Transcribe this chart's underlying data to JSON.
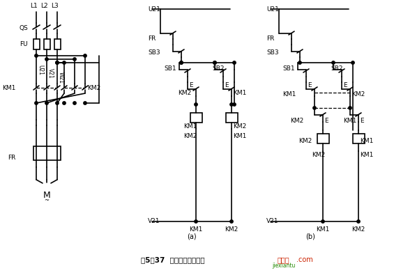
{
  "title": "图5－37  电动机正反转电路",
  "bg_color": "#ffffff",
  "line_color": "#000000",
  "watermark_cn": "接线图",
  "watermark_com": ".com",
  "watermark_en": "jiexiantu",
  "watermark_color": "#cc2200",
  "watermark2_color": "#228800",
  "caption_a": "(a)",
  "caption_b": "(b)"
}
